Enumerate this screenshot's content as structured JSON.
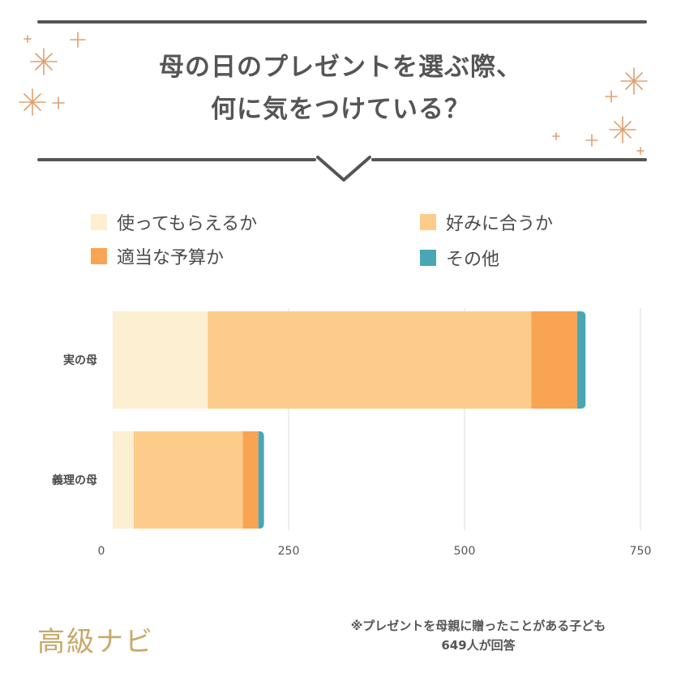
{
  "header": {
    "title_line1": "母の日のプレゼントを選ぶ際、",
    "title_line2": "何に気をつけている？"
  },
  "legend": [
    {
      "label": "使ってもらえるか",
      "color": "#fdefd2"
    },
    {
      "label": "好みに合うか",
      "color": "#fdcc8a"
    },
    {
      "label": "適当な予算か",
      "color": "#f8a453"
    },
    {
      "label": "その他",
      "color": "#4aa6b4"
    }
  ],
  "chart_data": {
    "type": "bar",
    "orientation": "horizontal",
    "stacked": true,
    "categories": [
      "実の母",
      "義理の母"
    ],
    "series": [
      {
        "name": "使ってもらえるか",
        "values": [
          135,
          30
        ]
      },
      {
        "name": "好みに合うか",
        "values": [
          460,
          155
        ]
      },
      {
        "name": "適当な予算か",
        "values": [
          65,
          22
        ]
      },
      {
        "name": "その他",
        "values": [
          12,
          8
        ]
      }
    ],
    "xlim": [
      0,
      750
    ],
    "xticks": [
      0,
      250,
      500,
      750
    ],
    "grid": true
  },
  "footer": {
    "logo": "高級ナビ",
    "note_line1": "※プレゼントを母親に贈ったことがある子ども",
    "note_line2": "649人が回答"
  }
}
